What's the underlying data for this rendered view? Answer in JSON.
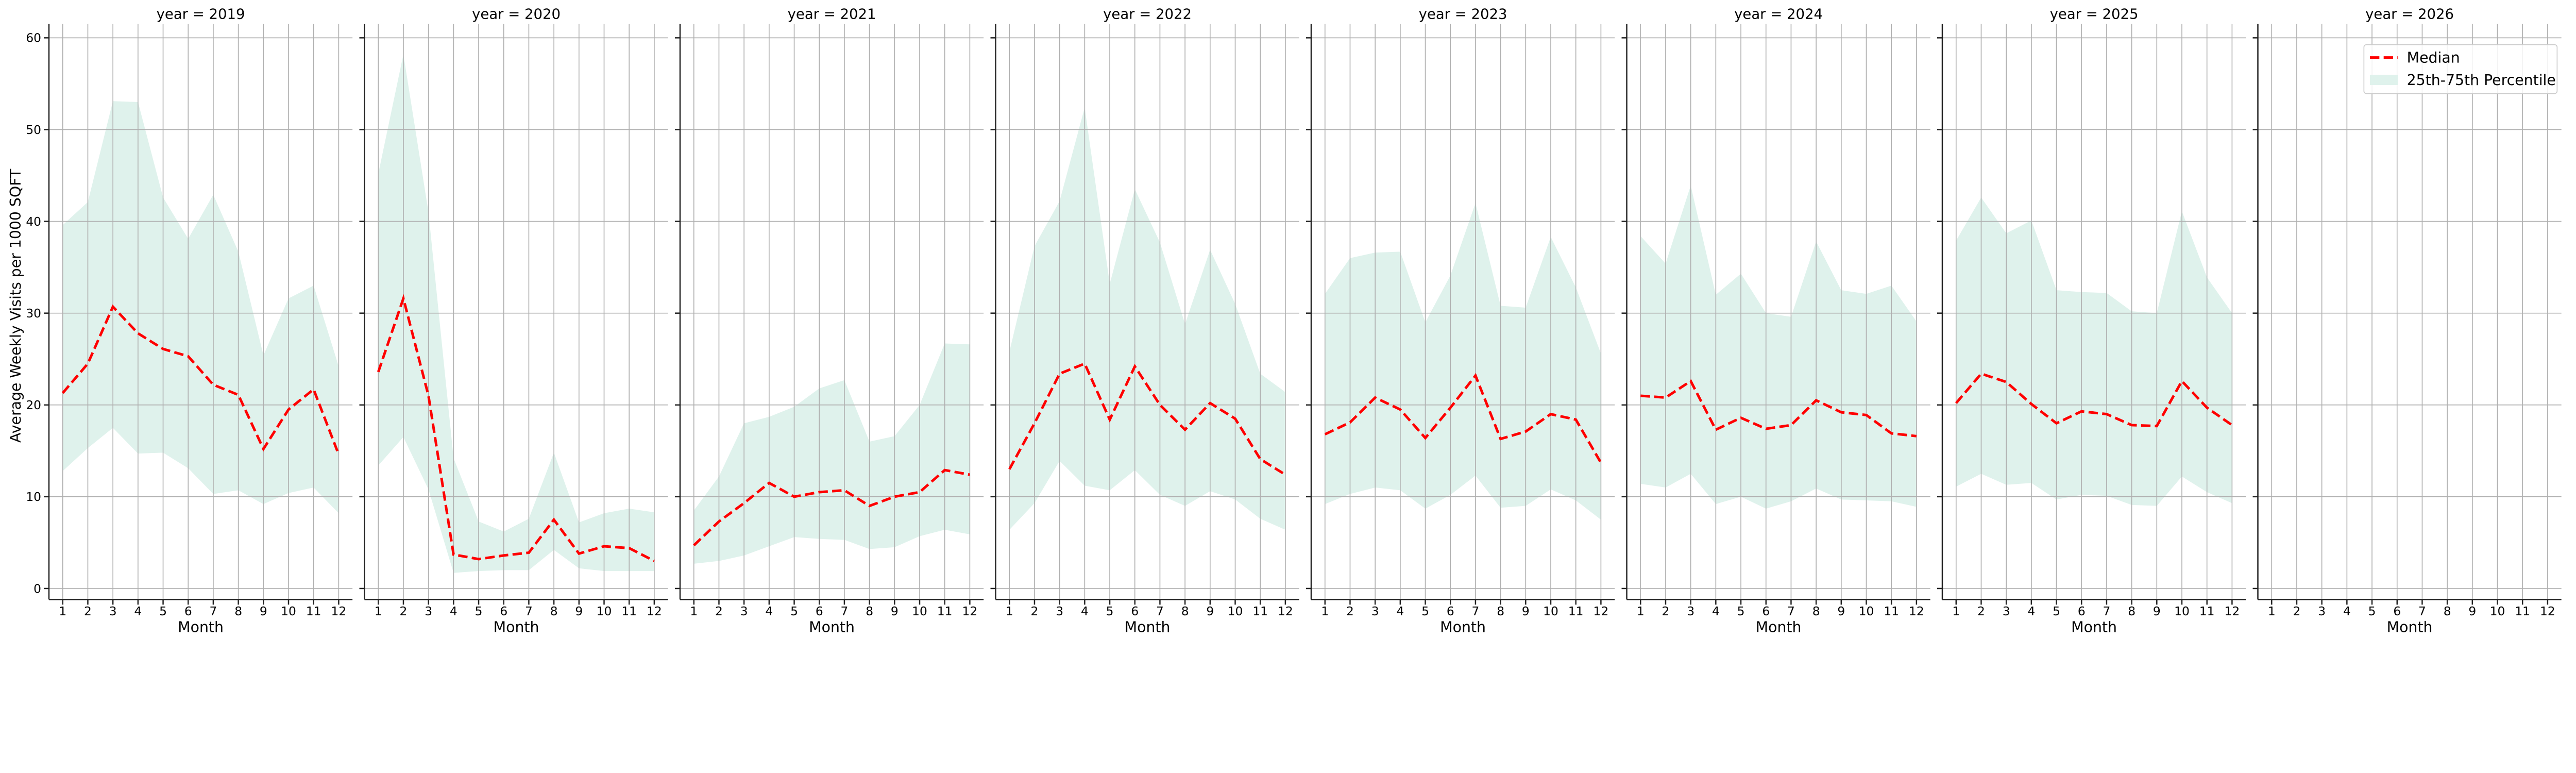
{
  "chart_data": {
    "type": "line",
    "ylabel": "Average Weekly Visits per 1000 SQFT",
    "xlabel": "Month",
    "ylim": [
      -1.2,
      61.5
    ],
    "xlim": [
      0.45,
      12.55
    ],
    "yticks": [
      0,
      10,
      20,
      30,
      40,
      50,
      60
    ],
    "xticks": [
      1,
      2,
      3,
      4,
      5,
      6,
      7,
      8,
      9,
      10,
      11,
      12
    ],
    "grid": true,
    "legend": {
      "placement": "top-right",
      "entries": [
        "Median",
        "25th-75th Percentile"
      ]
    },
    "colors": {
      "median": "#ff0000",
      "band": "#dff2ec",
      "grid": "#b0b0b0"
    },
    "facets": [
      {
        "title": "year = 2019",
        "median": [
          21.3,
          24.5,
          30.7,
          27.8,
          26.1,
          25.3,
          22.2,
          21.1,
          15.2,
          19.5,
          21.7,
          14.6
        ],
        "p75": [
          39.6,
          42.1,
          53.1,
          53.0,
          42.6,
          38.1,
          42.9,
          36.7,
          25.4,
          31.6,
          33.0,
          24.2
        ],
        "p25": [
          12.8,
          15.3,
          17.5,
          14.7,
          14.8,
          13.1,
          10.3,
          10.7,
          9.2,
          10.4,
          11.0,
          8.2
        ]
      },
      {
        "title": "year = 2020",
        "median": [
          23.6,
          31.6,
          21.0,
          3.7,
          3.2,
          3.6,
          3.9,
          7.5,
          3.8,
          4.6,
          4.4,
          3.0
        ],
        "p75": [
          45.2,
          58.2,
          41.0,
          14.2,
          7.3,
          6.2,
          7.6,
          14.8,
          7.2,
          8.2,
          8.7,
          8.3
        ],
        "p25": [
          13.4,
          16.5,
          10.8,
          1.7,
          1.9,
          2.0,
          2.0,
          4.2,
          2.2,
          1.9,
          1.9,
          1.9
        ]
      },
      {
        "title": "year = 2021",
        "median": [
          4.7,
          7.3,
          9.3,
          11.5,
          10.0,
          10.5,
          10.7,
          9.0,
          10.0,
          10.5,
          12.9,
          12.4
        ],
        "p75": [
          8.5,
          12.2,
          18.0,
          18.7,
          19.8,
          21.8,
          22.7,
          16.0,
          16.6,
          20.0,
          26.7,
          26.6
        ],
        "p25": [
          2.7,
          3.0,
          3.6,
          4.6,
          5.6,
          5.4,
          5.3,
          4.3,
          4.5,
          5.7,
          6.4,
          5.9
        ]
      },
      {
        "title": "year = 2022",
        "median": [
          13.0,
          18.0,
          23.4,
          24.5,
          18.4,
          24.2,
          20.0,
          17.3,
          20.2,
          18.5,
          14.1,
          12.4
        ],
        "p75": [
          25.8,
          37.3,
          42.2,
          52.4,
          33.2,
          43.5,
          37.7,
          28.8,
          36.9,
          31.0,
          23.4,
          21.4
        ],
        "p25": [
          6.4,
          9.3,
          13.9,
          11.2,
          10.7,
          12.9,
          10.2,
          9.0,
          10.6,
          9.7,
          7.6,
          6.4
        ]
      },
      {
        "title": "year = 2023",
        "median": [
          16.8,
          18.1,
          20.8,
          19.5,
          16.4,
          19.7,
          23.2,
          16.3,
          17.1,
          19.0,
          18.4,
          13.7
        ],
        "p75": [
          32.1,
          36.0,
          36.6,
          36.7,
          29.0,
          34.1,
          42.0,
          30.8,
          30.6,
          38.3,
          32.8,
          25.6
        ],
        "p25": [
          9.2,
          10.3,
          11.0,
          10.7,
          8.7,
          10.2,
          12.3,
          8.8,
          9.0,
          10.8,
          9.6,
          7.5
        ]
      },
      {
        "title": "year = 2024",
        "median": [
          21.0,
          20.8,
          22.6,
          17.3,
          18.6,
          17.4,
          17.8,
          20.5,
          19.2,
          18.9,
          16.9,
          16.6
        ],
        "p75": [
          38.4,
          35.4,
          43.9,
          32.0,
          34.3,
          30.0,
          29.6,
          37.8,
          32.5,
          32.1,
          33.0,
          29.1
        ],
        "p25": [
          11.4,
          11.0,
          12.5,
          9.2,
          10.0,
          8.7,
          9.5,
          10.9,
          9.7,
          9.6,
          9.5,
          8.9
        ]
      },
      {
        "title": "year = 2025",
        "median": [
          20.2,
          23.4,
          22.5,
          20.1,
          18.0,
          19.3,
          19.0,
          17.8,
          17.7,
          22.6,
          19.7,
          17.8
        ],
        "p75": [
          37.9,
          42.6,
          38.7,
          40.1,
          32.5,
          32.3,
          32.2,
          30.2,
          30.0,
          41.1,
          33.9,
          30.0
        ],
        "p25": [
          11.1,
          12.5,
          11.3,
          11.5,
          9.7,
          10.2,
          10.1,
          9.1,
          9.0,
          12.2,
          10.5,
          9.3
        ]
      },
      {
        "title": "year = 2026",
        "median": [],
        "p75": [],
        "p25": []
      }
    ]
  }
}
